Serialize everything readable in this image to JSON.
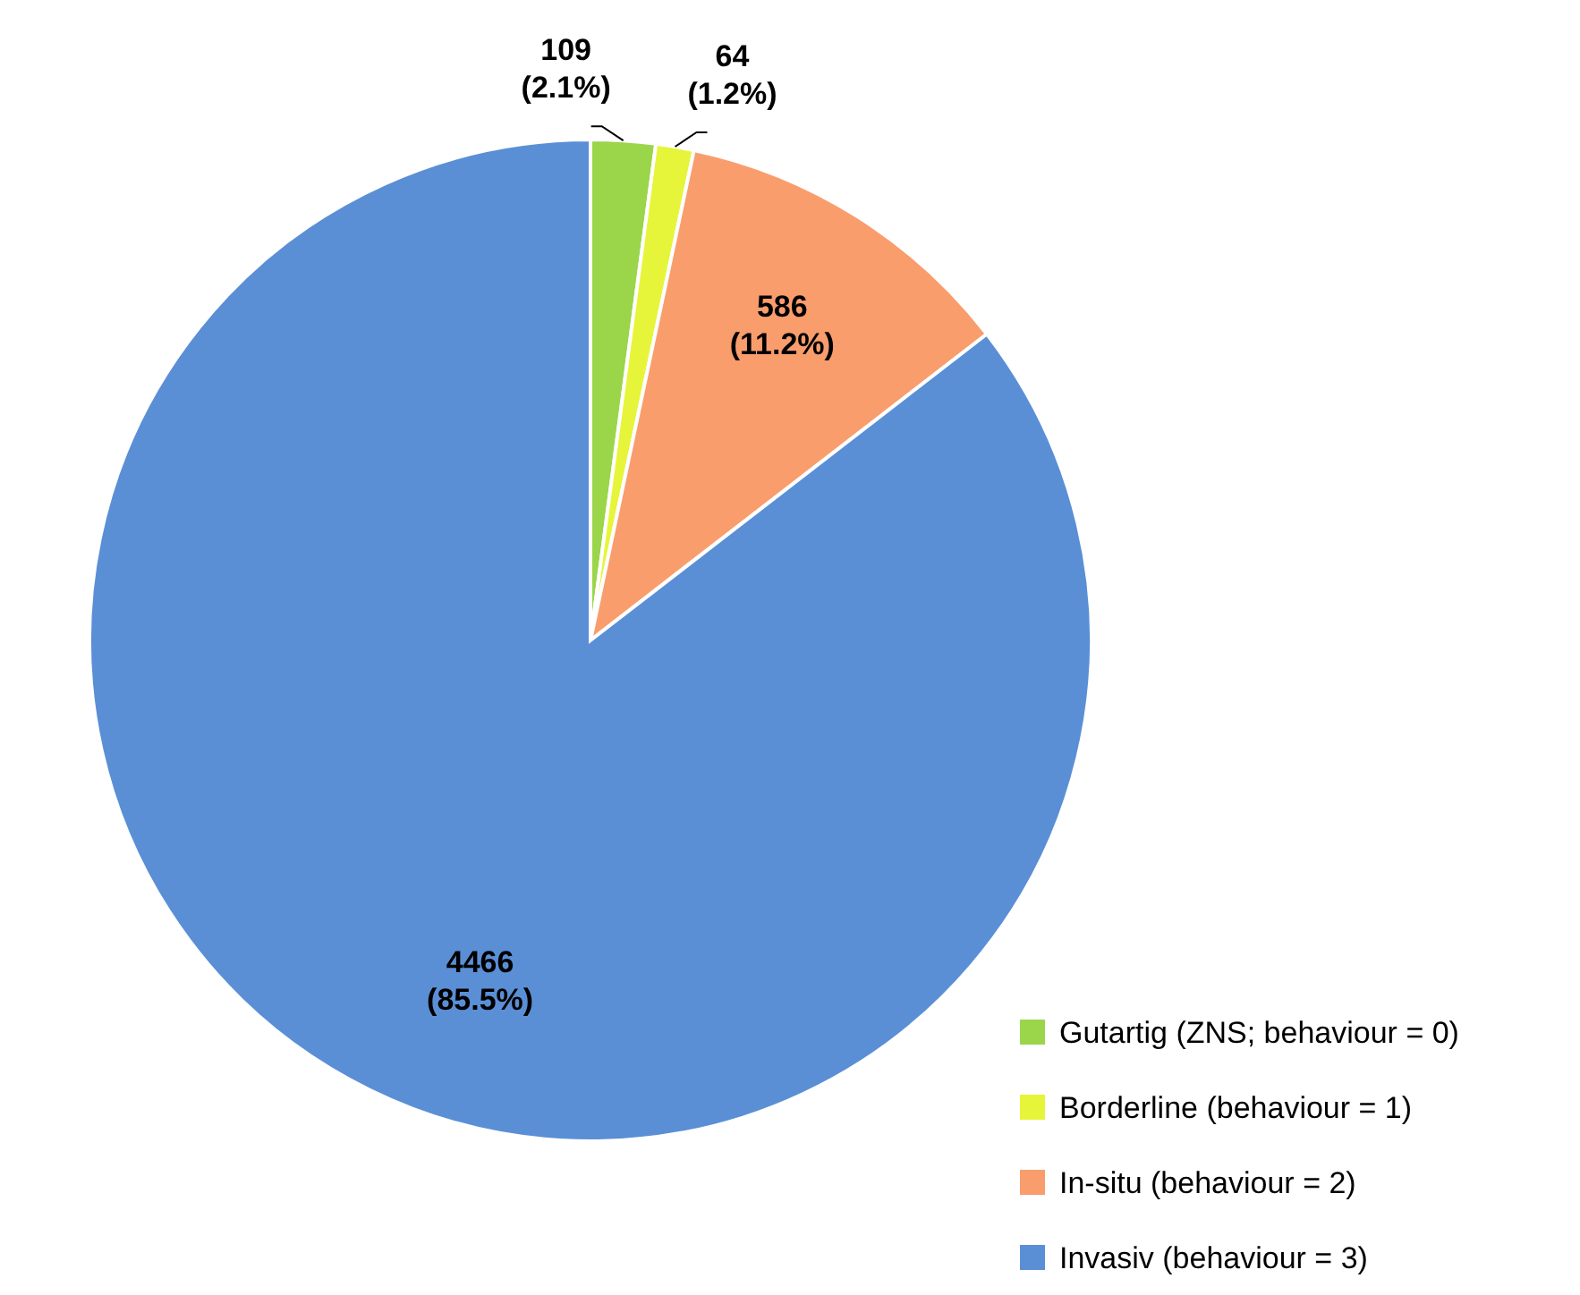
{
  "chart_data": {
    "type": "pie",
    "categories": [
      "Gutartig (ZNS; behaviour = 0)",
      "Borderline (behaviour = 1)",
      "In-situ (behaviour = 2)",
      "Invasiv (behaviour = 3)"
    ],
    "values": [
      109,
      64,
      586,
      4466
    ],
    "colors": [
      "#9bd54a",
      "#e6f53a",
      "#f99d6d",
      "#5a8fd6"
    ],
    "value_labels": [
      "109 (2.1%)",
      "64 (1.2%)",
      "586 (11.2%)",
      "4466 (85.5%)"
    ],
    "legend": "bottom right"
  }
}
